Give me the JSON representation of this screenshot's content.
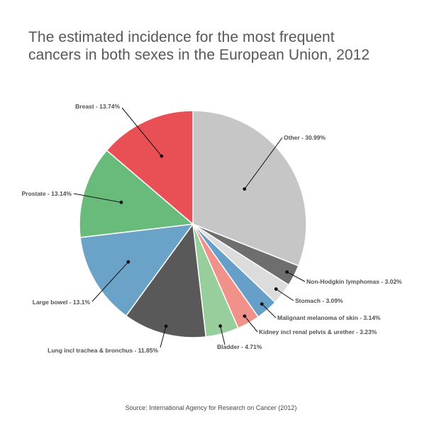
{
  "chart_data": {
    "type": "pie",
    "title_lines": [
      "The estimated incidence for the most frequent",
      "cancers in both sexes in the European Union, 2012"
    ],
    "source": "Source: International Agency for Research on Cancer (2012)",
    "slices": [
      {
        "name": "Other",
        "value": 30.99,
        "label": "Other - 30.99%",
        "color": "#c6c6c6"
      },
      {
        "name": "Non-Hodgkin lymphomas",
        "value": 3.02,
        "label": "Non-Hodgkin lymphomas - 3.02%",
        "color": "#6e6e6e"
      },
      {
        "name": "Stomach",
        "value": 3.09,
        "label": "Stomach - 3.09%",
        "color": "#dcdcdc"
      },
      {
        "name": "Malignant melanoma of skin",
        "value": 3.14,
        "label": "Malignant melanoma of skin - 3.14%",
        "color": "#66a0c8"
      },
      {
        "name": "Kidney incl renal pelvis & urether",
        "value": 3.23,
        "label": "Kidney incl renal pelvis & urether - 3.23%",
        "color": "#f2918a"
      },
      {
        "name": "Bladder",
        "value": 4.71,
        "label": "Bladder - 4.71%",
        "color": "#98cd9c"
      },
      {
        "name": "Lung incl trachea & bronchus",
        "value": 11.85,
        "label": "Lung incl trachea & bronchus - 11.85%",
        "color": "#595959"
      },
      {
        "name": "Large bowel",
        "value": 13.1,
        "label": "Large bowel - 13.1%",
        "color": "#6ba2c8"
      },
      {
        "name": "Prostate",
        "value": 13.14,
        "label": "Prostate - 13.14%",
        "color": "#68bb7b"
      },
      {
        "name": "Breast",
        "value": 13.74,
        "label": "Breast - 13.74%",
        "color": "#e85055"
      }
    ]
  }
}
